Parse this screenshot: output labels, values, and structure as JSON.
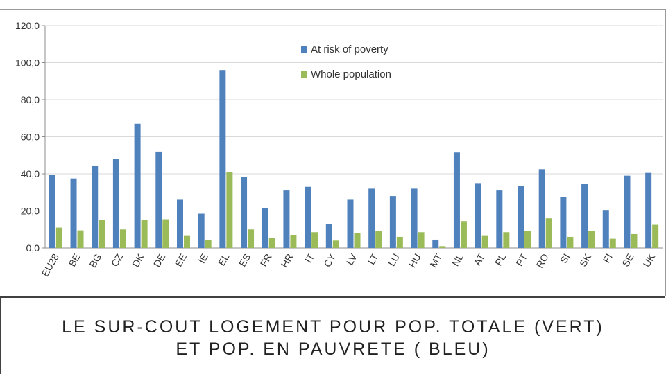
{
  "chart_data": {
    "type": "bar",
    "categories": [
      "EU28",
      "BE",
      "BG",
      "CZ",
      "DK",
      "DE",
      "EE",
      "IE",
      "EL",
      "ES",
      "FR",
      "HR",
      "IT",
      "CY",
      "LV",
      "LT",
      "LU",
      "HU",
      "MT",
      "NL",
      "AT",
      "PL",
      "PT",
      "RO",
      "SI",
      "SK",
      "FI",
      "SE",
      "UK"
    ],
    "series": [
      {
        "name": "At risk of poverty",
        "color": "#4f81bd",
        "values": [
          39.5,
          37.5,
          44.5,
          48,
          67,
          52,
          26,
          18.5,
          96,
          38.5,
          21.5,
          31,
          33,
          13,
          26,
          32,
          28,
          32,
          4.5,
          51.5,
          35,
          31,
          33.5,
          42.5,
          27.5,
          34.5,
          20.5,
          39,
          40.5
        ]
      },
      {
        "name": "Whole population",
        "color": "#9bbb59",
        "values": [
          11,
          9.5,
          15,
          10,
          15,
          15.5,
          6.5,
          4.5,
          41,
          10,
          5.5,
          7,
          8.5,
          4,
          8,
          9,
          6,
          8.5,
          1,
          14.5,
          6.5,
          8.5,
          9,
          16,
          6,
          9,
          5,
          7.5,
          12.5
        ]
      }
    ],
    "yticks": [
      "0,0",
      "20,0",
      "40,0",
      "60,0",
      "80,0",
      "100,0",
      "120,0"
    ],
    "ylim": [
      0,
      120
    ],
    "legend_position": "top-right",
    "grid": "y-major"
  },
  "caption": {
    "line1": "LE SUR-COUT LOGEMENT POUR POP. TOTALE (VERT)",
    "line2": "ET POP. EN PAUVRETE ( BLEU)"
  }
}
